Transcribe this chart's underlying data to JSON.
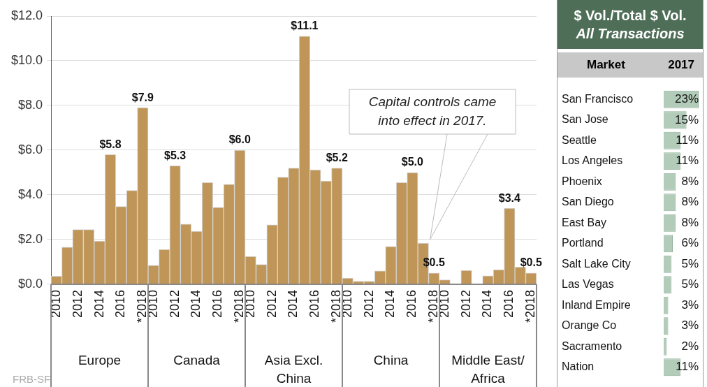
{
  "chart_data": [
    {
      "type": "bar",
      "categories": [
        "2010",
        null,
        "2012",
        null,
        "2014",
        null,
        "2016",
        null,
        "*2018",
        "2010",
        null,
        "2012",
        null,
        "2014",
        null,
        "2016",
        null,
        "*2018",
        "2010",
        null,
        "2012",
        null,
        "2014",
        null,
        "2016",
        null,
        "*2018",
        "2010",
        null,
        "2012",
        null,
        "2014",
        null,
        "2016",
        null,
        "*2018",
        "2010",
        null,
        "2012",
        null,
        "2014",
        null,
        "2016",
        null,
        "*2018"
      ],
      "values": [
        0.36,
        1.66,
        2.45,
        2.45,
        1.93,
        5.8,
        3.48,
        4.2,
        7.9,
        0.85,
        1.56,
        5.3,
        2.69,
        2.37,
        4.55,
        3.44,
        4.47,
        6.0,
        1.25,
        0.89,
        2.66,
        4.79,
        5.2,
        11.1,
        5.12,
        4.62,
        5.2,
        0.28,
        0.14,
        0.14,
        0.6,
        1.69,
        4.55,
        5.0,
        1.84,
        0.5,
        0.2,
        null,
        0.62,
        null,
        0.38,
        0.65,
        3.4,
        0.77,
        0.5
      ],
      "value_labels": [
        null,
        null,
        null,
        null,
        null,
        "$5.8",
        null,
        null,
        "$7.9",
        null,
        null,
        "$5.3",
        null,
        null,
        null,
        null,
        null,
        "$6.0",
        null,
        null,
        null,
        null,
        null,
        "$11.1",
        null,
        null,
        "$5.2",
        null,
        null,
        null,
        null,
        null,
        null,
        "$5.0",
        null,
        "$0.5",
        null,
        null,
        null,
        null,
        null,
        null,
        "$3.4",
        null,
        "$0.5"
      ],
      "color": "#bf9658",
      "ylim": [
        0,
        12
      ],
      "yticks": [
        {
          "value": 0,
          "label": "$0.0"
        },
        {
          "value": 2,
          "label": "$2.0"
        },
        {
          "value": 4,
          "label": "$4.0"
        },
        {
          "value": 6,
          "label": "$6.0"
        },
        {
          "value": 8,
          "label": "$8.0"
        },
        {
          "value": 10,
          "label": "$10.0"
        },
        {
          "value": 12,
          "label": "$12.0"
        }
      ],
      "grid": "y",
      "legend": false,
      "annotations": [
        "Europe",
        "Canada",
        "Asia Excl. China",
        "China",
        "Middle East/ Africa",
        "Capital controls came into effect in 2017.",
        "FRB-SF"
      ]
    },
    {
      "type": "bar",
      "orientation": "horizontal",
      "title": "$ Vol./Total $ Vol.",
      "subtitle": "All Transactions",
      "ylabel": "Market",
      "xlabel": "2017",
      "categories": [
        "San Francisco",
        "San Jose",
        "Seattle",
        "Los Angeles",
        "Phoenix",
        "San Diego",
        "East Bay",
        "Portland",
        "Salt Lake City",
        "Las Vegas",
        "Inland Empire",
        "Orange Co",
        "Sacramento",
        "Nation"
      ],
      "values": [
        23,
        15,
        11,
        11,
        8,
        8,
        8,
        6,
        5,
        5,
        3,
        3,
        2,
        11
      ],
      "value_labels": [
        "23%",
        "15%",
        "11%",
        "11%",
        "8%",
        "8%",
        "8%",
        "6%",
        "5%",
        "5%",
        "3%",
        "3%",
        "2%",
        "11%"
      ],
      "color": "#b3ccba",
      "xlim": [
        0,
        23
      ],
      "tick_labels": "y",
      "grid": false,
      "legend": false
    }
  ]
}
